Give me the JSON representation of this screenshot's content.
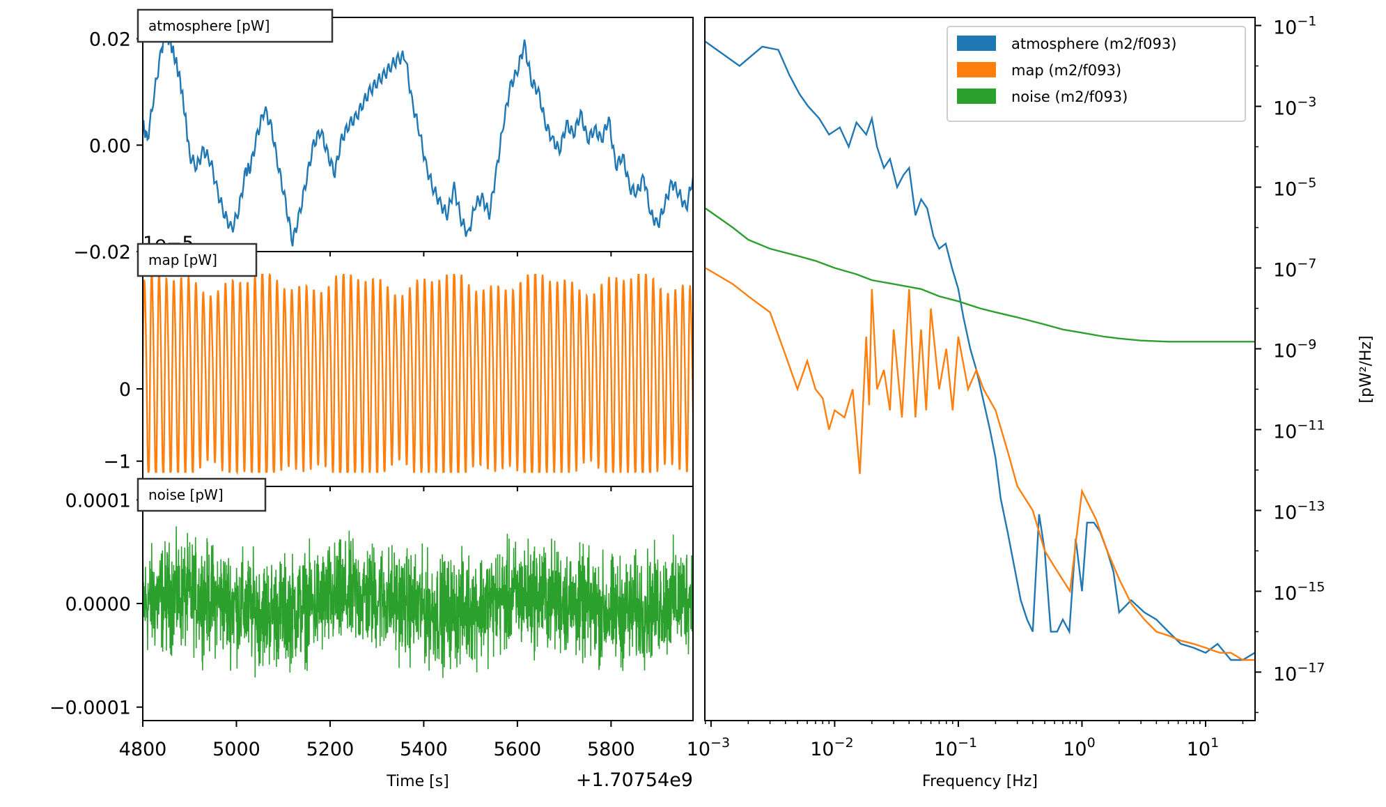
{
  "colors": {
    "atmosphere": "#1f77b4",
    "map": "#ff7f0e",
    "noise": "#2ca02c"
  },
  "timeseries": {
    "xlabel": "Time [s]",
    "x_offset_label": "+1.70754e9",
    "xlim": [
      4800,
      5975
    ],
    "xticks": [
      "4800",
      "5000",
      "5200",
      "5400",
      "5600",
      "5800"
    ],
    "panels": [
      {
        "key": "atmosphere",
        "label": "atmosphere [pW]",
        "scale_label": "",
        "ylim": [
          -0.02,
          0.024
        ],
        "yticks": [
          {
            "value": 0.02,
            "label": "0.02"
          },
          {
            "value": 0.0,
            "label": "0.00"
          },
          {
            "value": -0.02,
            "label": "−0.02"
          }
        ]
      },
      {
        "key": "map",
        "label": "map [pW]",
        "scale_label": "1e−5",
        "ylim": [
          -1.35,
          1.9
        ],
        "yticks": [
          {
            "value": 0,
            "label": "0"
          },
          {
            "value": -1,
            "label": "−1"
          }
        ]
      },
      {
        "key": "noise",
        "label": "noise [pW]",
        "scale_label": "",
        "ylim": [
          -0.000113,
          0.000113
        ],
        "yticks": [
          {
            "value": 0.0001,
            "label": "0.0001"
          },
          {
            "value": 0.0,
            "label": "0.0000"
          },
          {
            "value": -0.0001,
            "label": "−0.0001"
          }
        ]
      }
    ]
  },
  "psd_axis": {
    "xlabel": "Frequency [Hz]",
    "ylabel": "[pW²/Hz]",
    "xlim_log10": [
      -3.05,
      1.4
    ],
    "ylim_log10": [
      -18.2,
      -0.8
    ],
    "xticks": [
      {
        "exp": -3,
        "label": "10",
        "sup": "−3"
      },
      {
        "exp": -2,
        "label": "10",
        "sup": "−2"
      },
      {
        "exp": -1,
        "label": "10",
        "sup": "−1"
      },
      {
        "exp": 0,
        "label": "10",
        "sup": "0"
      },
      {
        "exp": 1,
        "label": "10",
        "sup": "1"
      }
    ],
    "yticks": [
      {
        "exp": -1,
        "label": "10",
        "sup": "−1"
      },
      {
        "exp": -3,
        "label": "10",
        "sup": "−3"
      },
      {
        "exp": -5,
        "label": "10",
        "sup": "−5"
      },
      {
        "exp": -7,
        "label": "10",
        "sup": "−7"
      },
      {
        "exp": -9,
        "label": "10",
        "sup": "−9"
      },
      {
        "exp": -11,
        "label": "10",
        "sup": "−11"
      },
      {
        "exp": -13,
        "label": "10",
        "sup": "−13"
      },
      {
        "exp": -15,
        "label": "10",
        "sup": "−15"
      },
      {
        "exp": -17,
        "label": "10",
        "sup": "−17"
      }
    ],
    "legend": [
      {
        "key": "atmosphere",
        "label": "atmosphere (m2/f093)"
      },
      {
        "key": "map",
        "label": "map (m2/f093)"
      },
      {
        "key": "noise",
        "label": "noise (m2/f093)"
      }
    ]
  },
  "chart_data": [
    {
      "type": "line",
      "title": "atmosphere [pW]",
      "xlabel": "Time [s]",
      "x_offset": "+1.70754e9",
      "ylim": [
        -0.02,
        0.024
      ],
      "series": [
        {
          "name": "atmosphere [pW]",
          "x": [
            4800,
            4810,
            4825,
            4840,
            4850,
            4860,
            4870,
            4880,
            4890,
            4900,
            4915,
            4930,
            4945,
            4960,
            4975,
            4990,
            5005,
            5020,
            5030,
            5045,
            5060,
            5075,
            5090,
            5105,
            5120,
            5135,
            5150,
            5165,
            5180,
            5195,
            5210,
            5225,
            5240,
            5255,
            5270,
            5285,
            5300,
            5315,
            5330,
            5345,
            5360,
            5375,
            5390,
            5405,
            5420,
            5435,
            5450,
            5465,
            5480,
            5495,
            5510,
            5525,
            5540,
            5555,
            5570,
            5585,
            5600,
            5615,
            5630,
            5645,
            5660,
            5675,
            5690,
            5705,
            5720,
            5735,
            5750,
            5765,
            5780,
            5795,
            5810,
            5825,
            5840,
            5855,
            5870,
            5885,
            5900,
            5915,
            5930,
            5945,
            5960,
            5975
          ],
          "values": [
            0.004,
            0.001,
            0.01,
            0.018,
            0.021,
            0.019,
            0.016,
            0.012,
            0.006,
            -0.002,
            -0.004,
            -0.001,
            -0.003,
            -0.009,
            -0.013,
            -0.016,
            -0.012,
            -0.005,
            -0.004,
            0.002,
            0.007,
            0.003,
            -0.004,
            -0.011,
            -0.018,
            -0.013,
            -0.006,
            0.0,
            0.003,
            -0.002,
            -0.005,
            0.001,
            0.004,
            0.005,
            0.008,
            0.01,
            0.012,
            0.013,
            0.015,
            0.016,
            0.017,
            0.008,
            0.003,
            -0.004,
            -0.008,
            -0.011,
            -0.013,
            -0.008,
            -0.014,
            -0.017,
            -0.011,
            -0.01,
            -0.013,
            -0.005,
            0.004,
            0.011,
            0.014,
            0.019,
            0.012,
            0.01,
            0.004,
            0.001,
            -0.001,
            0.004,
            0.002,
            0.006,
            0.001,
            0.003,
            0.001,
            0.005,
            -0.004,
            -0.002,
            -0.008,
            -0.009,
            -0.006,
            -0.013,
            -0.015,
            -0.011,
            -0.007,
            -0.009,
            -0.012,
            -0.006
          ]
        }
      ]
    },
    {
      "type": "line",
      "title": "map [pW]",
      "xlabel": "Time [s]",
      "y_scale": "1e−5",
      "ylim": [
        -1.35,
        1.9
      ],
      "series": [
        {
          "name": "map [pW]",
          "description_of_signal": "",
          "x_range": [
            4800,
            5975
          ],
          "amplitude_range": [
            -1.15,
            1.6
          ],
          "cycles": 75
        }
      ]
    },
    {
      "type": "line",
      "title": "noise [pW]",
      "xlabel": "Time [s]",
      "ylim": [
        -0.000113,
        0.000113
      ],
      "series": [
        {
          "name": "noise [pW]",
          "x_range": [
            4800,
            5975
          ],
          "envelope_max": 0.0001,
          "envelope_min": -0.0001
        }
      ]
    },
    {
      "type": "line",
      "xlabel": "Frequency [Hz]",
      "ylabel": "[pW²/Hz]",
      "xscale": "log",
      "yscale": "log",
      "grid": false,
      "legend_position": "top-right",
      "series": [
        {
          "name": "atmosphere (m2/f093)",
          "x": [
            0.0009,
            0.0017,
            0.0026,
            0.0035,
            0.0043,
            0.0052,
            0.0061,
            0.0075,
            0.009,
            0.011,
            0.013,
            0.015,
            0.018,
            0.02,
            0.022,
            0.025,
            0.028,
            0.032,
            0.036,
            0.04,
            0.045,
            0.05,
            0.056,
            0.063,
            0.07,
            0.079,
            0.089,
            0.1,
            0.11,
            0.125,
            0.14,
            0.16,
            0.18,
            0.2,
            0.22,
            0.25,
            0.28,
            0.32,
            0.36,
            0.4,
            0.45,
            0.5,
            0.56,
            0.63,
            0.7,
            0.79,
            0.89,
            1.0,
            1.1,
            1.25,
            1.4,
            1.6,
            1.8,
            2.0,
            2.5,
            3.2,
            4.0,
            5.0,
            6.3,
            8.0,
            10.0,
            12.5,
            16.0,
            20.0,
            25.0
          ],
          "values": [
            0.04,
            0.01,
            0.03,
            0.025,
            0.006,
            0.002,
            0.001,
            0.0005,
            0.0002,
            0.0003,
            0.0001,
            0.0004,
            0.0002,
            0.0005,
            0.0001,
            3e-05,
            5e-05,
            1e-05,
            2e-05,
            3e-05,
            2e-06,
            5e-06,
            3e-06,
            6e-07,
            3e-07,
            4e-07,
            1e-07,
            3e-08,
            6e-09,
            1e-09,
            3e-10,
            5e-11,
            1e-11,
            2e-12,
            2e-13,
            3e-14,
            5e-15,
            6e-16,
            2e-16,
            1e-16,
            8e-14,
            1e-14,
            1e-16,
            1e-16,
            2e-16,
            1e-16,
            2e-14,
            1e-15,
            5e-14,
            5e-14,
            3e-14,
            1e-14,
            3e-15,
            3e-16,
            6e-16,
            3e-16,
            2e-16,
            1e-16,
            5e-17,
            4e-17,
            3e-17,
            5e-17,
            2e-17,
            2e-17,
            3e-17
          ]
        },
        {
          "name": "map (m2/f093)",
          "x": [
            0.0009,
            0.0015,
            0.002,
            0.003,
            0.004,
            0.005,
            0.006,
            0.007,
            0.008,
            0.009,
            0.01,
            0.012,
            0.014,
            0.016,
            0.018,
            0.019,
            0.02,
            0.022,
            0.025,
            0.028,
            0.03,
            0.035,
            0.04,
            0.045,
            0.05,
            0.055,
            0.06,
            0.07,
            0.08,
            0.09,
            0.1,
            0.12,
            0.14,
            0.16,
            0.2,
            0.25,
            0.3,
            0.4,
            0.5,
            0.6,
            0.8,
            1.0,
            1.3,
            1.6,
            2.0,
            2.5,
            3.2,
            4.0,
            5.0,
            6.3,
            8.0,
            10.0,
            13.0,
            16.0,
            20.0,
            25.0
          ],
          "values": [
            1e-07,
            4e-08,
            2e-08,
            8e-09,
            7e-10,
            1e-10,
            5e-10,
            1e-10,
            6e-11,
            1e-11,
            3e-11,
            2e-11,
            1e-10,
            8e-13,
            2e-09,
            4e-11,
            3e-08,
            1e-10,
            3e-10,
            3e-11,
            3e-09,
            2e-11,
            3e-08,
            2e-11,
            3e-09,
            3e-11,
            1e-08,
            1e-10,
            1e-09,
            3e-11,
            2e-09,
            1e-10,
            3e-10,
            1e-10,
            3e-11,
            3e-12,
            4e-13,
            1e-13,
            1e-14,
            4e-15,
            1e-15,
            3e-13,
            6e-14,
            1e-14,
            2e-15,
            5e-16,
            2e-16,
            1e-16,
            8e-17,
            6e-17,
            5e-17,
            4e-17,
            3e-17,
            3e-17,
            2e-17,
            2e-17
          ]
        },
        {
          "name": "noise (m2/f093)",
          "x": [
            0.0009,
            0.0015,
            0.002,
            0.003,
            0.005,
            0.007,
            0.01,
            0.015,
            0.02,
            0.03,
            0.05,
            0.07,
            0.1,
            0.15,
            0.2,
            0.3,
            0.5,
            0.7,
            1.0,
            1.5,
            2.0,
            3.0,
            5.0,
            7.0,
            10.0,
            15.0,
            25.0
          ],
          "values": [
            3e-06,
            1e-06,
            5e-07,
            3e-07,
            2e-07,
            1.5e-07,
            1e-07,
            7e-08,
            5e-08,
            4e-08,
            3e-08,
            2e-08,
            1.5e-08,
            1e-08,
            8e-09,
            6e-09,
            4e-09,
            3e-09,
            2.5e-09,
            2e-09,
            1.8e-09,
            1.6e-09,
            1.5e-09,
            1.5e-09,
            1.5e-09,
            1.5e-09,
            1.5e-09
          ]
        }
      ]
    }
  ]
}
